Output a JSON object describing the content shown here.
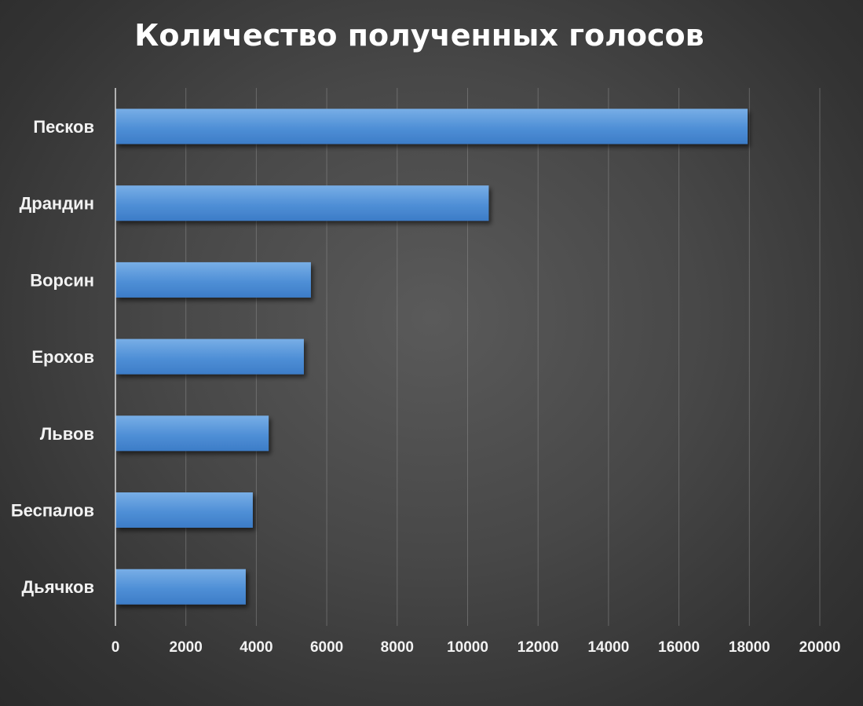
{
  "chart_data": {
    "type": "bar",
    "orientation": "horizontal",
    "title": "Количество полученных голосов",
    "categories": [
      "Песков",
      "Драндин",
      "Ворсин",
      "Ерохов",
      "Львов",
      "Беспалов",
      "Дьячков"
    ],
    "values": [
      17950,
      10600,
      5550,
      5350,
      4350,
      3900,
      3700
    ],
    "xlim": [
      0,
      20000
    ],
    "xticks": [
      "0",
      "2000",
      "4000",
      "6000",
      "8000",
      "10000",
      "12000",
      "14000",
      "16000",
      "18000",
      "20000"
    ],
    "xlabel": "",
    "ylabel": "",
    "grid": true,
    "legend": "none",
    "colors": {
      "bar_light": "#78aee6",
      "bar_mid": "#4f8fd6",
      "bar_dark": "#3c7cc7",
      "background": "#474747",
      "text": "#f2f2f2"
    }
  }
}
